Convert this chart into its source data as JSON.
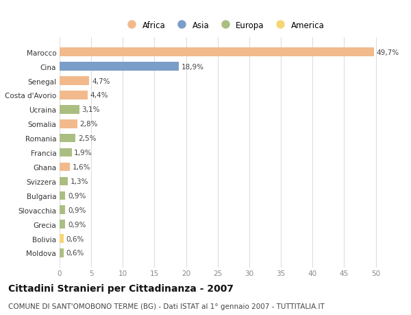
{
  "countries": [
    "Marocco",
    "Cina",
    "Senegal",
    "Costa d'Avorio",
    "Ucraina",
    "Somalia",
    "Romania",
    "Francia",
    "Ghana",
    "Svizzera",
    "Bulgaria",
    "Slovacchia",
    "Grecia",
    "Bolivia",
    "Moldova"
  ],
  "values": [
    49.7,
    18.9,
    4.7,
    4.4,
    3.1,
    2.8,
    2.5,
    1.9,
    1.6,
    1.3,
    0.9,
    0.9,
    0.9,
    0.6,
    0.6
  ],
  "labels": [
    "49,7%",
    "18,9%",
    "4,7%",
    "4,4%",
    "3,1%",
    "2,8%",
    "2,5%",
    "1,9%",
    "1,6%",
    "1,3%",
    "0,9%",
    "0,9%",
    "0,9%",
    "0,6%",
    "0,6%"
  ],
  "continents": [
    "Africa",
    "Asia",
    "Africa",
    "Africa",
    "Europa",
    "Africa",
    "Europa",
    "Europa",
    "Africa",
    "Europa",
    "Europa",
    "Europa",
    "Europa",
    "America",
    "Europa"
  ],
  "continent_colors": {
    "Africa": "#F2BA8C",
    "Asia": "#7B9EC9",
    "Europa": "#ABBE82",
    "America": "#F5D676"
  },
  "legend_order": [
    "Africa",
    "Asia",
    "Europa",
    "America"
  ],
  "title": "Cittadini Stranieri per Cittadinanza - 2007",
  "subtitle": "COMUNE DI SANT'OMOBONO TERME (BG) - Dati ISTAT al 1° gennaio 2007 - TUTTITALIA.IT",
  "xlim": [
    0,
    52
  ],
  "xticks": [
    0,
    5,
    10,
    15,
    20,
    25,
    30,
    35,
    40,
    45,
    50
  ],
  "background_color": "#ffffff",
  "grid_color": "#dddddd",
  "bar_height": 0.6,
  "title_fontsize": 10,
  "subtitle_fontsize": 7.5,
  "label_fontsize": 7.5,
  "tick_fontsize": 7.5,
  "legend_fontsize": 8.5
}
